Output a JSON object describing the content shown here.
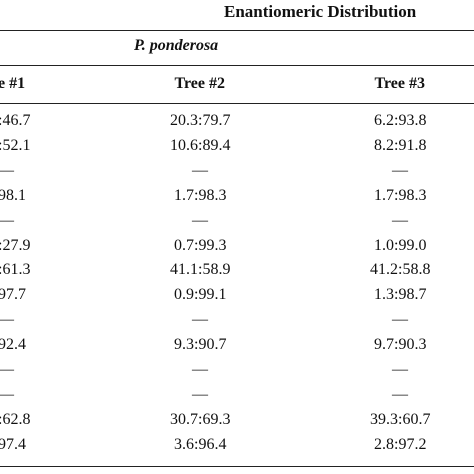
{
  "header": {
    "title": "Enantiomeric Distribution",
    "subtitle": "P. ponderosa"
  },
  "table": {
    "columns": [
      "e #1",
      "Tree #2",
      "Tree #3"
    ],
    "rows": [
      [
        ":46.7",
        "20.3:79.7",
        "6.2:93.8"
      ],
      [
        ":52.1",
        "10.6:89.4",
        "8.2:91.8"
      ],
      [
        "—",
        "—",
        "—"
      ],
      [
        "98.1",
        "1.7:98.3",
        "1.7:98.3"
      ],
      [
        "—",
        "—",
        "—"
      ],
      [
        ":27.9",
        "0.7:99.3",
        "1.0:99.0"
      ],
      [
        ":61.3",
        "41.1:58.9",
        "41.2:58.8"
      ],
      [
        "97.7",
        "0.9:99.1",
        "1.3:98.7"
      ],
      [
        "—",
        "—",
        "—"
      ],
      [
        "92.4",
        "9.3:90.7",
        "9.7:90.3"
      ],
      [
        "—",
        "—",
        "—"
      ],
      [
        "—",
        "—",
        "—"
      ],
      [
        ":62.8",
        "30.7:69.3",
        "39.3:60.7"
      ],
      [
        "97.4",
        "3.6:96.4",
        "2.8:97.2"
      ]
    ]
  }
}
